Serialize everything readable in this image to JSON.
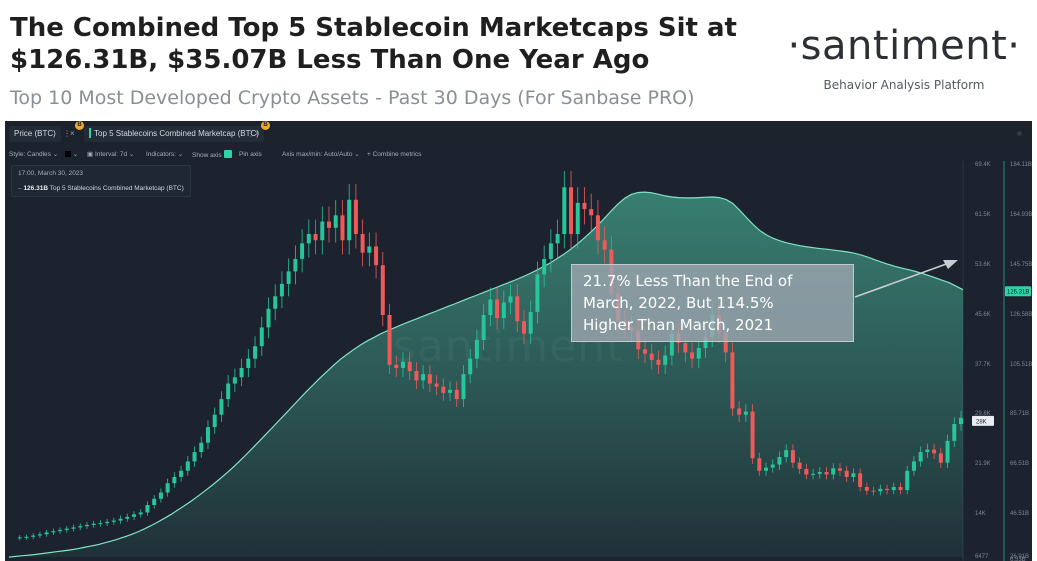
{
  "header": {
    "title_line1": "The Combined Top 5 Stablecoin Marketcaps Sit at",
    "title_line2": "$126.31B, $35.07B Less Than One Year Ago",
    "subtitle": "Top 10 Most Developed Crypto Assets - Past 30 Days (For Sanbase PRO)"
  },
  "brand": {
    "logo": "·santiment·",
    "tagline": "Behavior Analysis Platform"
  },
  "tabs": [
    {
      "label": "Price (BTC)",
      "badge": "B",
      "close": "×"
    },
    {
      "label": "Top 5 Stablecoins Combined Marketcap (BTC)",
      "badge": "B",
      "close": "×"
    }
  ],
  "toolbar": {
    "style": "Style: Candles",
    "interval": "Interval: 7d",
    "indicators": "Indicators:",
    "show_axis": "Show axis",
    "pin_axis": "Pin axis",
    "axis_maxmin": "Axis max/min: Auto/Auto",
    "combine": "+ Combine metrics"
  },
  "legend": {
    "date": "17:00, March 30, 2023",
    "value": "126.31B",
    "series": "Top 5 Stablecoins Combined Marketcap (BTC)"
  },
  "annotation": {
    "line1": "21.7% Less Than the End of",
    "line2": "March, 2022, But 114.5%",
    "line3": "Higher Than March, 2021"
  },
  "watermark": "santiment",
  "colors": {
    "panel_bg": "#1c232e",
    "up": "#26c59a",
    "down": "#ee5a5a",
    "area": "#4fc9a8",
    "accent": "#2fd3a7"
  },
  "chart_data": {
    "type": "line",
    "axes": {
      "left": {
        "label": "Price (BTC)",
        "ticks": [
          "69.4K",
          "61.5K",
          "53.6K",
          "45.6K",
          "37.7K",
          "29.8K",
          "21.9K",
          "14K",
          "6477"
        ],
        "current": "28K",
        "range": [
          6477,
          69400
        ]
      },
      "right": {
        "label": "Top 5 Stablecoins Combined Marketcap",
        "ticks": [
          "184.11B",
          "164.93B",
          "145.75B",
          "126.58B",
          "105.51B",
          "85.71B",
          "66.51B",
          "46.51B",
          "26.91B",
          "6.53B"
        ],
        "current": "126.31B",
        "range": [
          6.53,
          184.11
        ]
      }
    },
    "series": [
      {
        "name": "Price (BTC)",
        "style": "candles",
        "values": [
          9200,
          9300,
          9400,
          9600,
          9800,
          10100,
          10300,
          10500,
          10700,
          10900,
          11100,
          11300,
          11500,
          11600,
          11800,
          12000,
          12300,
          12600,
          13000,
          13300,
          14500,
          15500,
          16500,
          18000,
          19000,
          20000,
          21500,
          23000,
          24500,
          27000,
          29000,
          31500,
          34000,
          35000,
          36500,
          38000,
          40000,
          43000,
          46000,
          48000,
          50000,
          52000,
          54000,
          56500,
          58000,
          57000,
          60000,
          59000,
          61000,
          57000,
          63500,
          58000,
          55000,
          56000,
          53000,
          45000,
          37000,
          36500,
          37500,
          36000,
          34500,
          35500,
          34000,
          33500,
          32500,
          33000,
          31500,
          35500,
          38000,
          41000,
          45000,
          47500,
          44500,
          47000,
          48000,
          44000,
          42000,
          45500,
          51500,
          54000,
          56500,
          58000,
          65500,
          58000,
          63000,
          62000,
          61000,
          57000,
          55500,
          48500,
          44000,
          43000,
          42500,
          39500,
          38800,
          37800,
          37000,
          38500,
          42000,
          40500,
          39000,
          38000,
          39700,
          41500,
          45000,
          42200,
          39000,
          30000,
          29000,
          29500,
          22000,
          20000,
          20500,
          21000,
          22200,
          23300,
          21300,
          20300,
          19400,
          19500,
          19800,
          19400,
          20400,
          20000,
          19000,
          19600,
          17400,
          16800,
          16700,
          17100,
          16900,
          17400,
          16900,
          20000,
          21500,
          23000,
          23400,
          22800,
          21300,
          24800,
          27500,
          28500
        ],
        "color": "#26c59a"
      },
      {
        "name": "Top 5 Stablecoins Combined Marketcap (BTC)",
        "style": "area",
        "values": [
          6.5,
          6.8,
          7.1,
          7.4,
          7.7,
          8.1,
          8.5,
          8.9,
          9.3,
          9.7,
          10.2,
          10.8,
          11.4,
          12.0,
          12.8,
          13.6,
          14.5,
          15.5,
          16.6,
          17.8,
          19.2,
          20.7,
          22.3,
          24.0,
          25.8,
          27.8,
          29.8,
          31.9,
          34.1,
          36.4,
          38.8,
          41.3,
          43.9,
          46.6,
          49.5,
          52.5,
          55.6,
          58.7,
          61.9,
          65.1,
          68.3,
          71.5,
          74.8,
          78.0,
          81.2,
          84.3,
          87.3,
          90.2,
          93.0,
          95.7,
          98.0,
          100.2,
          102.2,
          104.0,
          105.6,
          107.2,
          108.6,
          109.9,
          111.2,
          112.4,
          113.6,
          114.8,
          116.0,
          117.2,
          118.4,
          119.6,
          120.8,
          122.0,
          123.2,
          124.4,
          125.6,
          126.8,
          128.0,
          129.2,
          130.4,
          131.6,
          132.9,
          134.3,
          135.8,
          137.4,
          139.1,
          141.0,
          143.0,
          145.2,
          147.6,
          150.2,
          153.0,
          156.0,
          159.2,
          162.5,
          165.6,
          168.2,
          170.0,
          170.8,
          171.0,
          170.7,
          170.0,
          169.3,
          168.8,
          168.5,
          168.4,
          168.4,
          168.5,
          168.7,
          168.8,
          168.5,
          167.6,
          165.8,
          162.8,
          159.5,
          156.3,
          153.6,
          151.6,
          150.1,
          149.0,
          148.1,
          147.4,
          146.8,
          146.3,
          145.9,
          145.5,
          145.2,
          144.8,
          144.4,
          144.0,
          143.4,
          142.6,
          141.6,
          140.5,
          139.4,
          138.4,
          137.5,
          136.7,
          136.0,
          135.2,
          134.3,
          133.3,
          132.3,
          131.2,
          130.1,
          128.6,
          127.0
        ],
        "color": "#4fc9a8"
      }
    ]
  }
}
